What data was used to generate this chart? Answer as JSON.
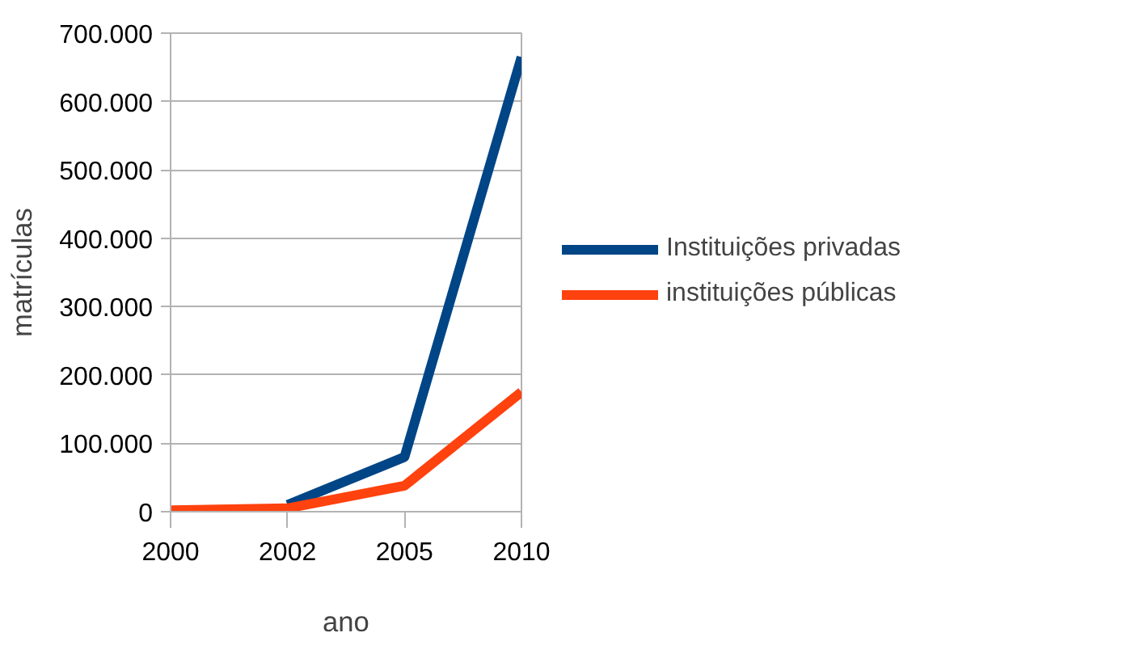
{
  "chart_data": {
    "type": "line",
    "xlabel": "ano",
    "ylabel": "matrículas",
    "categories": [
      "2000",
      "2002",
      "2005",
      "2010"
    ],
    "series": [
      {
        "name": "Instituições privadas",
        "color": "#004586",
        "values": [
          null,
          10000,
          80000,
          665000
        ]
      },
      {
        "name": "instituições públicas",
        "color": "#ff420e",
        "values": [
          2000,
          5000,
          38000,
          175000
        ]
      }
    ],
    "ylim": [
      0,
      700000
    ],
    "yticks": [
      {
        "value": 0,
        "label": "0"
      },
      {
        "value": 100000,
        "label": "100.000"
      },
      {
        "value": 200000,
        "label": "200.000"
      },
      {
        "value": 300000,
        "label": "300.000"
      },
      {
        "value": 400000,
        "label": "400.000"
      },
      {
        "value": 500000,
        "label": "500.000"
      },
      {
        "value": 600000,
        "label": "600.000"
      },
      {
        "value": 700000,
        "label": "700.000"
      }
    ],
    "grid": "y",
    "legend": "right",
    "marker": "none",
    "line_style": "solid"
  }
}
